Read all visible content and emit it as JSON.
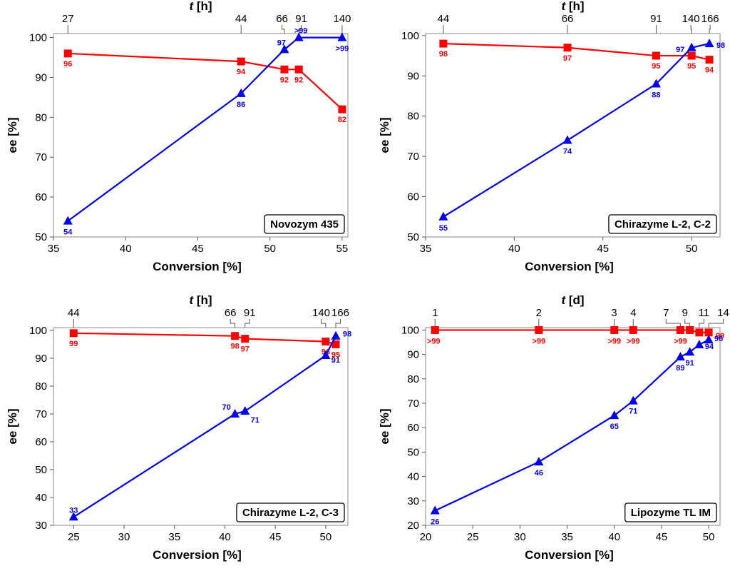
{
  "colors": {
    "red": "#ff0000",
    "blue": "#0000ee"
  },
  "chart_data": [
    {
      "type": "line",
      "panel_label": "Novozym 435",
      "xlabel": "Conversion [%]",
      "ylabel": "ee [%]",
      "top_axis_label_var": "t",
      "top_axis_label_unit": "[h]",
      "xlim": [
        35,
        55.4
      ],
      "ylim": [
        50,
        101
      ],
      "xticks": [
        35,
        40,
        45,
        50,
        55
      ],
      "yticks": [
        50,
        60,
        70,
        80,
        90,
        100
      ],
      "top_ticks": [
        {
          "x": 36,
          "label": "27"
        },
        {
          "x": 48,
          "label": "44"
        },
        {
          "x": 51,
          "label": "66"
        },
        {
          "x": 52,
          "label": "91"
        },
        {
          "x": 55,
          "label": "140"
        }
      ],
      "series": [
        {
          "color": "red",
          "marker": "square",
          "x": [
            36,
            48,
            51,
            52,
            55
          ],
          "y": [
            96,
            94,
            92,
            92,
            82
          ],
          "labels": [
            "96",
            "94",
            "92",
            "92",
            "82"
          ]
        },
        {
          "color": "blue",
          "marker": "triangle",
          "x": [
            36,
            48,
            51,
            52,
            55
          ],
          "y": [
            54,
            86,
            97,
            100,
            100
          ],
          "labels": [
            "54",
            "86",
            "97",
            ">99",
            ">99"
          ]
        }
      ]
    },
    {
      "type": "line",
      "panel_label": "Chirazyme L-2, C-2",
      "xlabel": "Conversion [%]",
      "ylabel": "ee [%]",
      "top_axis_label_var": "t",
      "top_axis_label_unit": "[h]",
      "xlim": [
        35,
        51.6
      ],
      "ylim": [
        50,
        100.5
      ],
      "xticks": [
        35,
        40,
        45,
        50
      ],
      "yticks": [
        50,
        60,
        70,
        80,
        90,
        100
      ],
      "top_ticks": [
        {
          "x": 36,
          "label": "44"
        },
        {
          "x": 43,
          "label": "66"
        },
        {
          "x": 48,
          "label": "91"
        },
        {
          "x": 50,
          "label": "140"
        },
        {
          "x": 51,
          "label": "166"
        }
      ],
      "series": [
        {
          "color": "red",
          "marker": "square",
          "x": [
            36,
            43,
            48,
            50,
            51
          ],
          "y": [
            98,
            97,
            95,
            95,
            94
          ],
          "labels": [
            "98",
            "97",
            "95",
            "95",
            "94"
          ]
        },
        {
          "color": "blue",
          "marker": "triangle",
          "x": [
            36,
            43,
            48,
            50,
            51
          ],
          "y": [
            55,
            74,
            88,
            97,
            98
          ],
          "labels": [
            "55",
            "74",
            "88",
            "97",
            "98"
          ]
        }
      ]
    },
    {
      "type": "line",
      "panel_label": "Chirazyme L-2, C-3",
      "xlabel": "Conversion [%]",
      "ylabel": "ee [%]",
      "top_axis_label_var": "t",
      "top_axis_label_unit": "[h]",
      "xlim": [
        23,
        52.2
      ],
      "ylim": [
        30,
        101
      ],
      "xticks": [
        25,
        30,
        35,
        40,
        45,
        50
      ],
      "yticks": [
        30,
        40,
        50,
        60,
        70,
        80,
        90,
        100
      ],
      "top_ticks": [
        {
          "x": 25,
          "label": "44"
        },
        {
          "x": 41,
          "label": "66"
        },
        {
          "x": 42,
          "label": "91"
        },
        {
          "x": 50,
          "label": "140"
        },
        {
          "x": 51,
          "label": "166"
        }
      ],
      "series": [
        {
          "color": "red",
          "marker": "square",
          "x": [
            25,
            41,
            42,
            50,
            51
          ],
          "y": [
            99,
            98,
            97,
            96,
            95
          ],
          "labels": [
            "99",
            "98",
            "97",
            "96",
            "95"
          ]
        },
        {
          "color": "blue",
          "marker": "triangle",
          "x": [
            25,
            41,
            42,
            50,
            51
          ],
          "y": [
            33,
            70,
            71,
            91,
            98
          ],
          "labels": [
            "33",
            "70",
            "71",
            "91",
            "98"
          ]
        }
      ]
    },
    {
      "type": "line",
      "panel_label": "Lipozyme TL IM",
      "xlabel": "Conversion [%]",
      "ylabel": "ee [%]",
      "top_axis_label_var": "t",
      "top_axis_label_unit": "[d]",
      "xlim": [
        20,
        51.2
      ],
      "ylim": [
        20,
        101
      ],
      "xticks": [
        20,
        25,
        30,
        35,
        40,
        45,
        50
      ],
      "yticks": [
        20,
        30,
        40,
        50,
        60,
        70,
        80,
        90,
        100
      ],
      "top_ticks": [
        {
          "x": 21,
          "label": "1"
        },
        {
          "x": 32,
          "label": "2"
        },
        {
          "x": 40,
          "label": "3"
        },
        {
          "x": 42,
          "label": "4"
        },
        {
          "x": 47,
          "label": "7"
        },
        {
          "x": 48,
          "label": "9"
        },
        {
          "x": 49,
          "label": "11"
        },
        {
          "x": 50,
          "label": "14"
        }
      ],
      "series": [
        {
          "color": "red",
          "marker": "square",
          "x": [
            21,
            32,
            40,
            42,
            47,
            48,
            49,
            50
          ],
          "y": [
            100,
            100,
            100,
            100,
            100,
            100,
            99,
            99
          ],
          "labels": [
            ">99",
            ">99",
            ">99",
            ">99",
            ">99",
            "",
            "",
            "99"
          ]
        },
        {
          "color": "blue",
          "marker": "triangle",
          "x": [
            21,
            32,
            40,
            42,
            47,
            48,
            49,
            50
          ],
          "y": [
            26,
            46,
            65,
            71,
            89,
            91,
            94,
            96
          ],
          "labels": [
            "26",
            "46",
            "65",
            "71",
            "89",
            "91",
            "94",
            "96"
          ]
        }
      ]
    }
  ]
}
